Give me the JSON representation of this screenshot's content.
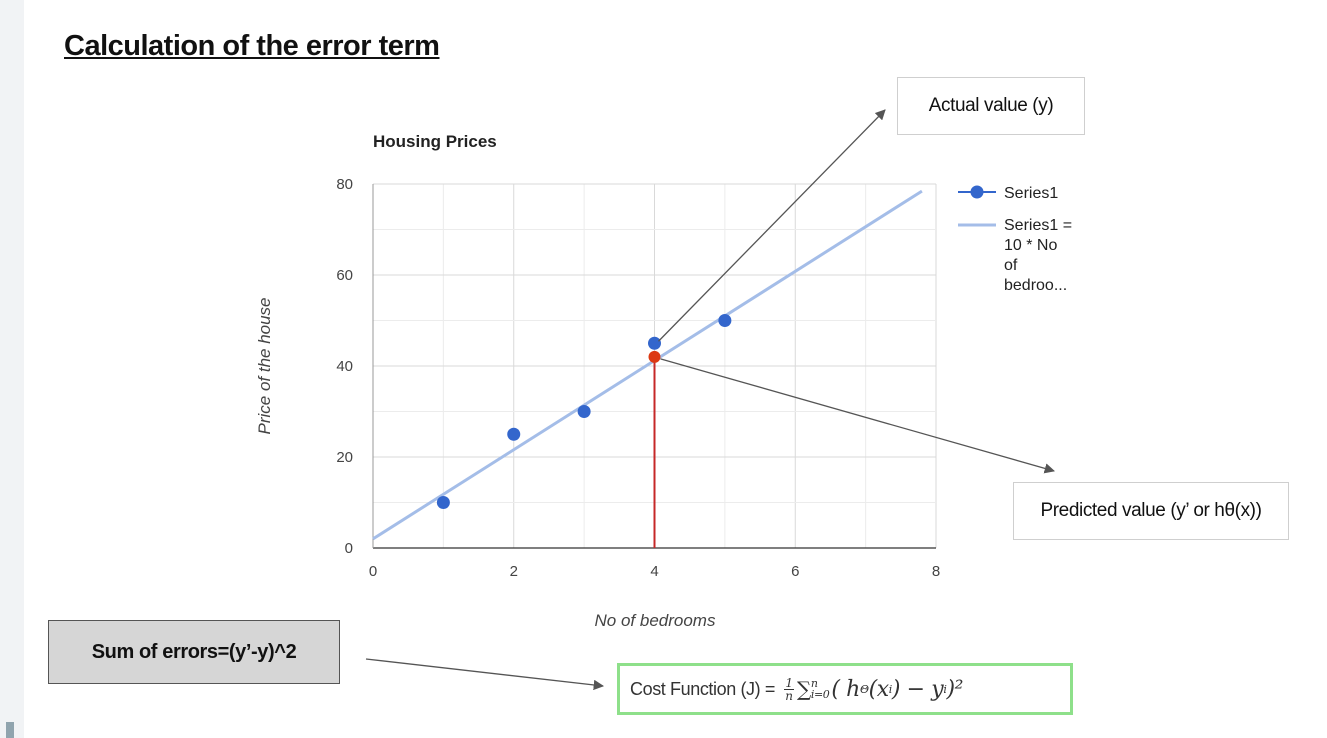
{
  "slide": {
    "title": "Calculation of the error term",
    "annotations": {
      "actual": "Actual value (y)",
      "predicted": "Predicted value (y’ or hθ(x))",
      "sum_errors": "Sum of errors=(y’-y)^2",
      "cost_label": "Cost Function (J) =",
      "cost_frac_num": "1",
      "cost_frac_den": "n",
      "cost_sigma": "∑",
      "cost_sub": "i=0",
      "cost_sup": "n",
      "cost_body": "( h",
      "cost_theta": "Θ",
      "cost_x": "(x",
      "cost_i": "i",
      "cost_mid": ") − y",
      "cost_i2": "i",
      "cost_end": ")²"
    },
    "colors": {
      "series_point": "#3366cc",
      "trendline": "#a4bde8",
      "predicted_point": "#dc3912",
      "error_line": "#c62828",
      "arrow": "#555555",
      "cost_border": "#8ee08a"
    }
  },
  "chart_data": {
    "type": "scatter",
    "title": "Housing Prices",
    "xlabel": "No of bedrooms",
    "ylabel": "Price of the house",
    "xlim": [
      0,
      8
    ],
    "ylim": [
      0,
      80
    ],
    "xticks": [
      "0",
      "2",
      "4",
      "6",
      "8"
    ],
    "yticks": [
      "0",
      "20",
      "40",
      "60",
      "80"
    ],
    "grid": true,
    "legend_position": "right",
    "series": [
      {
        "name": "Series1",
        "points": [
          [
            1,
            10
          ],
          [
            2,
            25
          ],
          [
            3,
            30
          ],
          [
            4,
            45
          ],
          [
            5,
            50
          ]
        ]
      }
    ],
    "trendline": {
      "name": "Series1 = 10 * No of bedroo...",
      "legend_lines": [
        "Series1 =",
        "10 * No",
        "of",
        "bedroo..."
      ],
      "slope": 9.8,
      "intercept": 2,
      "x_range": [
        0,
        7.8
      ]
    },
    "highlight": {
      "x": 4,
      "y": 42
    }
  }
}
